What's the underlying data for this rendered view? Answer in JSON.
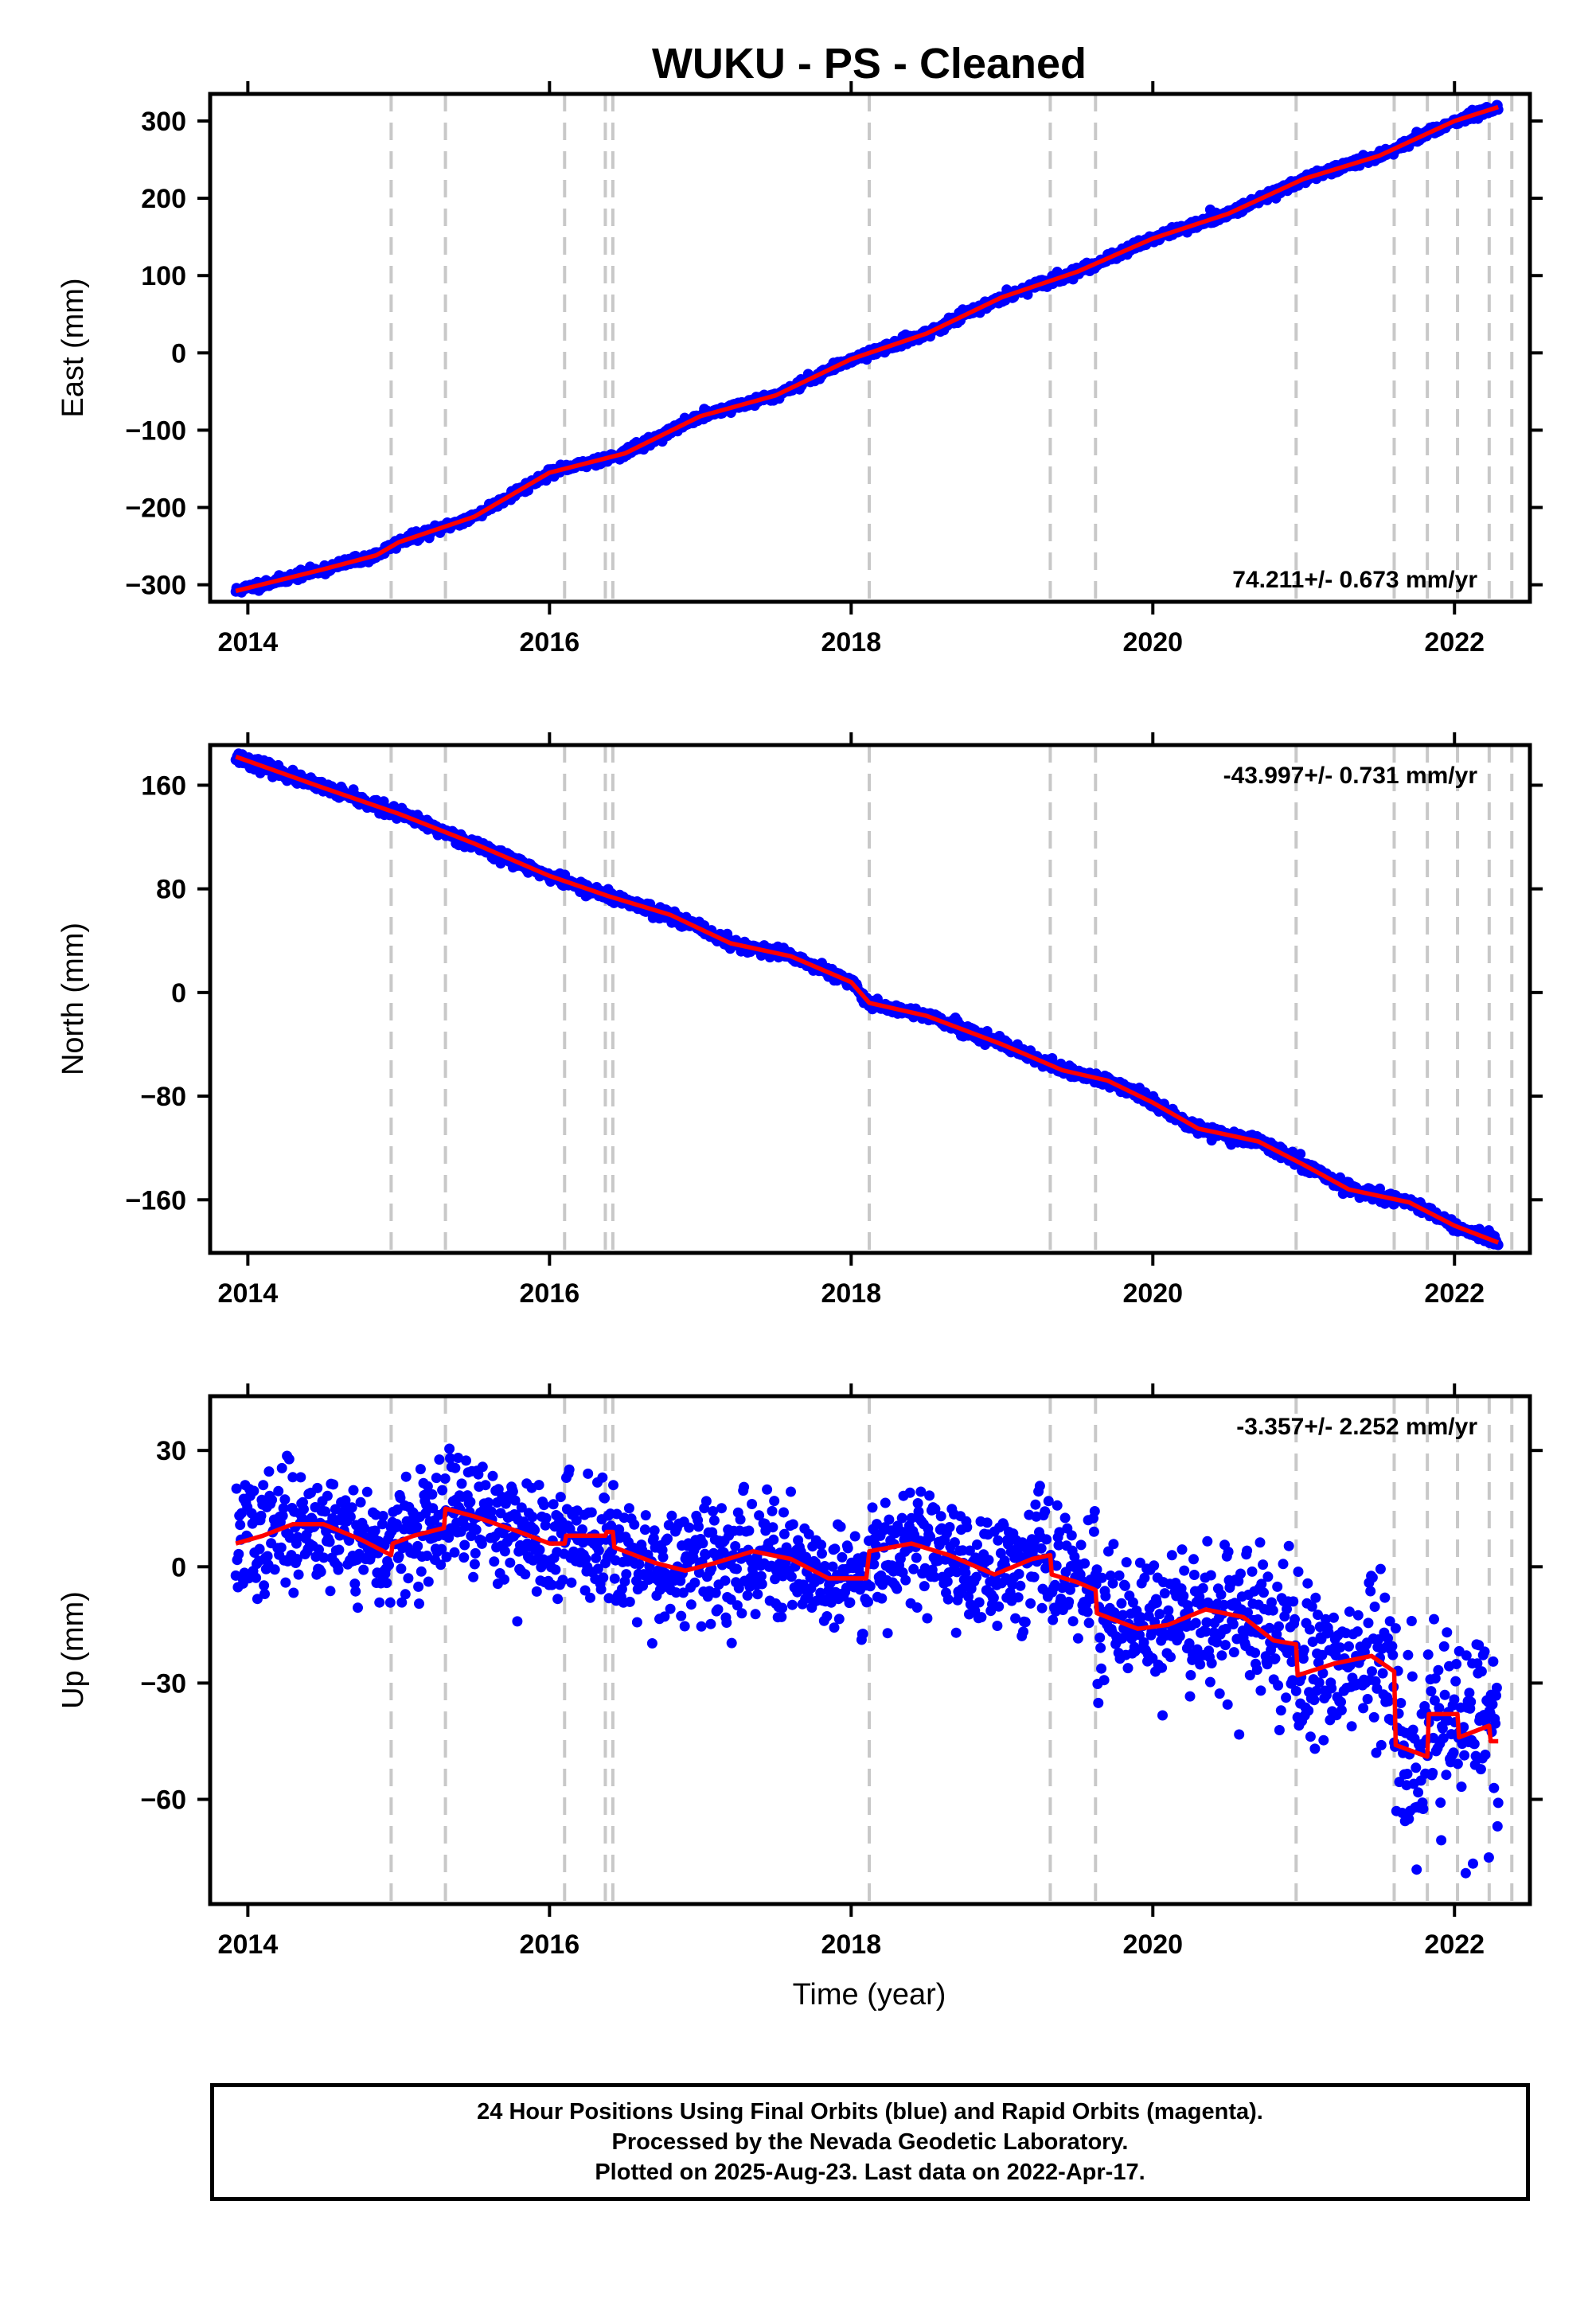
{
  "title": "WUKU  - PS - Cleaned",
  "x_axis_label": "Time (year)",
  "footer_lines": [
    "24 Hour Positions Using Final Orbits (blue) and Rapid Orbits (magenta).",
    "Processed by the Nevada Geodetic Laboratory.",
    "Plotted on 2025-Aug-23. Last data on 2022-Apr-17."
  ],
  "colors": {
    "data_points": "#0000ff",
    "model_line": "#ff0000",
    "event_lines": "#c8c8c8",
    "frame": "#000000"
  },
  "chart_data": [
    {
      "type": "scatter",
      "component": "east",
      "ylabel": "East (mm)",
      "xlim": [
        2013.75,
        2022.5
      ],
      "ylim": [
        -322,
        335
      ],
      "x_ticks": [
        2014,
        2016,
        2018,
        2020,
        2022
      ],
      "x_tick_labels": [
        "2014",
        "2016",
        "2018",
        "2020",
        "2022"
      ],
      "y_ticks": [
        -300,
        -200,
        -100,
        0,
        100,
        200,
        300
      ],
      "y_tick_labels": [
        "−300",
        "−200",
        "−100",
        "0",
        "100",
        "200",
        "300"
      ],
      "rate_text": "74.211+/- 0.673 mm/yr",
      "rate_position": "bottom-right",
      "event_lines_x": [
        2014.95,
        2015.31,
        2016.1,
        2016.37,
        2016.42,
        2018.12,
        2019.32,
        2019.62,
        2020.95,
        2021.6,
        2021.82,
        2022.02,
        2022.23,
        2022.38
      ],
      "data_span": [
        2013.92,
        2022.29
      ],
      "scatter_sigma": 2.8,
      "scatter_seed": 11,
      "model_line": [
        [
          2013.92,
          -308
        ],
        [
          2014.5,
          -280
        ],
        [
          2014.85,
          -262
        ],
        [
          2015.0,
          -245
        ],
        [
          2015.5,
          -212
        ],
        [
          2016.0,
          -155
        ],
        [
          2016.5,
          -130
        ],
        [
          2017.0,
          -82
        ],
        [
          2017.5,
          -55
        ],
        [
          2018.0,
          -8
        ],
        [
          2018.5,
          25
        ],
        [
          2019.0,
          72
        ],
        [
          2019.5,
          105
        ],
        [
          2020.0,
          148
        ],
        [
          2020.5,
          180
        ],
        [
          2021.0,
          225
        ],
        [
          2021.5,
          255
        ],
        [
          2022.0,
          300
        ],
        [
          2022.29,
          318
        ]
      ]
    },
    {
      "type": "scatter",
      "component": "north",
      "ylabel": "North (mm)",
      "xlim": [
        2013.75,
        2022.5
      ],
      "ylim": [
        -201,
        191
      ],
      "x_ticks": [
        2014,
        2016,
        2018,
        2020,
        2022
      ],
      "x_tick_labels": [
        "2014",
        "2016",
        "2018",
        "2020",
        "2022"
      ],
      "y_ticks": [
        -160,
        -80,
        0,
        80,
        160
      ],
      "y_tick_labels": [
        "−160",
        "−80",
        "0",
        "80",
        "160"
      ],
      "rate_text": "-43.997+/- 0.731 mm/yr",
      "rate_position": "top-right",
      "event_lines_x": [
        2014.95,
        2015.31,
        2016.1,
        2016.37,
        2016.42,
        2018.12,
        2019.32,
        2019.62,
        2020.95,
        2021.6,
        2021.82,
        2022.02,
        2022.23,
        2022.38
      ],
      "data_span": [
        2013.92,
        2022.29
      ],
      "scatter_sigma": 2.2,
      "scatter_seed": 23,
      "model_line": [
        [
          2013.92,
          182
        ],
        [
          2014.5,
          158
        ],
        [
          2015.0,
          138
        ],
        [
          2015.5,
          115
        ],
        [
          2016.0,
          90
        ],
        [
          2016.4,
          74
        ],
        [
          2016.8,
          60
        ],
        [
          2017.2,
          38
        ],
        [
          2017.6,
          28
        ],
        [
          2018.0,
          8
        ],
        [
          2018.12,
          -8
        ],
        [
          2018.5,
          -18
        ],
        [
          2019.0,
          -40
        ],
        [
          2019.4,
          -60
        ],
        [
          2019.7,
          -68
        ],
        [
          2020.0,
          -85
        ],
        [
          2020.3,
          -105
        ],
        [
          2020.7,
          -115
        ],
        [
          2021.0,
          -133
        ],
        [
          2021.3,
          -152
        ],
        [
          2021.7,
          -162
        ],
        [
          2022.0,
          -180
        ],
        [
          2022.29,
          -193
        ]
      ]
    },
    {
      "type": "scatter",
      "component": "up",
      "ylabel": "Up (mm)",
      "xlim": [
        2013.75,
        2022.5
      ],
      "ylim": [
        -87,
        44
      ],
      "x_ticks": [
        2014,
        2016,
        2018,
        2020,
        2022
      ],
      "x_tick_labels": [
        "2014",
        "2016",
        "2018",
        "2020",
        "2022"
      ],
      "y_ticks": [
        -60,
        -30,
        0,
        30
      ],
      "y_tick_labels": [
        "−60",
        "−30",
        "0",
        "30"
      ],
      "rate_text": "-3.357+/- 2.252 mm/yr",
      "rate_position": "top-right",
      "event_lines_x": [
        2014.95,
        2015.31,
        2016.1,
        2016.37,
        2016.42,
        2018.12,
        2019.32,
        2019.62,
        2020.95,
        2021.6,
        2021.82,
        2022.02,
        2022.23,
        2022.38
      ],
      "data_span": [
        2013.92,
        2022.29
      ],
      "scatter_sigma": 7.5,
      "scatter_seed": 37,
      "model_line": [
        [
          2013.92,
          6
        ],
        [
          2014.1,
          8
        ],
        [
          2014.3,
          11
        ],
        [
          2014.5,
          11
        ],
        [
          2014.75,
          7
        ],
        [
          2014.95,
          3
        ],
        [
          2014.96,
          6
        ],
        [
          2015.1,
          8
        ],
        [
          2015.3,
          10
        ],
        [
          2015.31,
          15
        ],
        [
          2015.5,
          13
        ],
        [
          2015.8,
          9
        ],
        [
          2016.0,
          6
        ],
        [
          2016.1,
          6
        ],
        [
          2016.11,
          8
        ],
        [
          2016.37,
          8
        ],
        [
          2016.38,
          9
        ],
        [
          2016.42,
          9
        ],
        [
          2016.43,
          5
        ],
        [
          2016.7,
          1
        ],
        [
          2016.9,
          -1
        ],
        [
          2017.1,
          1
        ],
        [
          2017.35,
          4
        ],
        [
          2017.6,
          2
        ],
        [
          2017.85,
          -3
        ],
        [
          2018.1,
          -3
        ],
        [
          2018.12,
          4
        ],
        [
          2018.4,
          6
        ],
        [
          2018.65,
          3
        ],
        [
          2018.95,
          -2
        ],
        [
          2019.2,
          2
        ],
        [
          2019.32,
          3
        ],
        [
          2019.33,
          -2
        ],
        [
          2019.5,
          -4
        ],
        [
          2019.62,
          -6
        ],
        [
          2019.63,
          -12
        ],
        [
          2019.9,
          -16
        ],
        [
          2020.1,
          -15
        ],
        [
          2020.35,
          -11
        ],
        [
          2020.6,
          -13
        ],
        [
          2020.8,
          -19
        ],
        [
          2020.95,
          -20
        ],
        [
          2020.96,
          -28
        ],
        [
          2021.2,
          -25
        ],
        [
          2021.45,
          -23
        ],
        [
          2021.6,
          -27
        ],
        [
          2021.61,
          -46
        ],
        [
          2021.82,
          -49
        ],
        [
          2021.83,
          -38
        ],
        [
          2022.02,
          -38
        ],
        [
          2022.03,
          -44
        ],
        [
          2022.23,
          -41
        ],
        [
          2022.24,
          -45
        ],
        [
          2022.29,
          -45
        ]
      ]
    }
  ]
}
